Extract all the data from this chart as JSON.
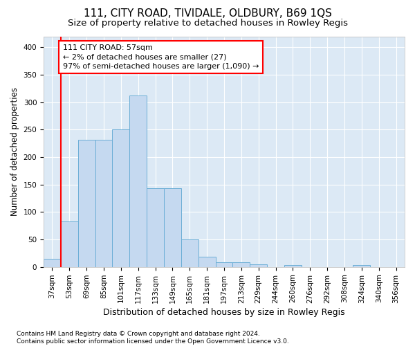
{
  "title1": "111, CITY ROAD, TIVIDALE, OLDBURY, B69 1QS",
  "title2": "Size of property relative to detached houses in Rowley Regis",
  "xlabel": "Distribution of detached houses by size in Rowley Regis",
  "ylabel": "Number of detached properties",
  "footnote": "Contains HM Land Registry data © Crown copyright and database right 2024.\nContains public sector information licensed under the Open Government Licence v3.0.",
  "bin_labels": [
    "37sqm",
    "53sqm",
    "69sqm",
    "85sqm",
    "101sqm",
    "117sqm",
    "133sqm",
    "149sqm",
    "165sqm",
    "181sqm",
    "197sqm",
    "213sqm",
    "229sqm",
    "244sqm",
    "260sqm",
    "276sqm",
    "292sqm",
    "308sqm",
    "324sqm",
    "340sqm",
    "356sqm"
  ],
  "bar_values": [
    15,
    83,
    232,
    232,
    250,
    312,
    143,
    143,
    50,
    19,
    9,
    9,
    5,
    0,
    3,
    0,
    0,
    0,
    3,
    0,
    0
  ],
  "bar_color": "#c5d9f0",
  "bar_edge_color": "#6baed6",
  "annotation_line1": "111 CITY ROAD: 57sqm",
  "annotation_line2": "← 2% of detached houses are smaller (27)",
  "annotation_line3": "97% of semi-detached houses are larger (1,090) →",
  "annotation_box_color": "white",
  "annotation_box_edge_color": "red",
  "vline_color": "red",
  "ylim": [
    0,
    420
  ],
  "yticks": [
    0,
    50,
    100,
    150,
    200,
    250,
    300,
    350,
    400
  ],
  "background_color": "#dce9f5",
  "grid_color": "white",
  "title1_fontsize": 11,
  "title2_fontsize": 9.5,
  "xlabel_fontsize": 9,
  "ylabel_fontsize": 8.5,
  "tick_fontsize": 7.5,
  "annotation_fontsize": 8,
  "footnote_fontsize": 6.5
}
